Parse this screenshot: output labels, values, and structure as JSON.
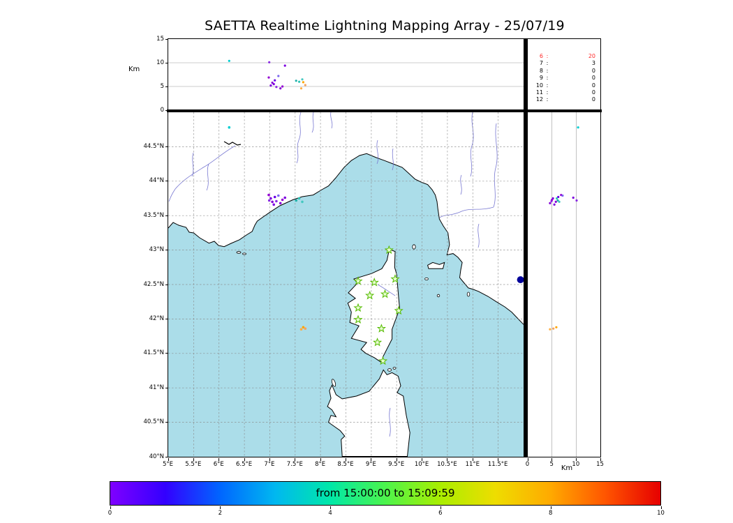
{
  "title": "SAETTA Realtime Lightning Mapping Array - 25/07/19",
  "map_colors": {
    "sea": "#abdde9",
    "land": "#ffffff",
    "coast": "#000000",
    "river": "#7979d2"
  },
  "counts_panel": {
    "highlight_color": "#ff2a2a",
    "rows": [
      {
        "label": "6",
        "value": "20"
      },
      {
        "label": "7",
        "value": "3"
      },
      {
        "label": "8",
        "value": "0"
      },
      {
        "label": "9",
        "value": "0"
      },
      {
        "label": "10",
        "value": "0"
      },
      {
        "label": "11",
        "value": "0"
      },
      {
        "label": "12",
        "value": "0"
      }
    ]
  },
  "colorbar": {
    "label": "from 15:00:00 to 15:09:59",
    "range": [
      0,
      10
    ],
    "tick_values": [
      0,
      2,
      4,
      6,
      8,
      10
    ],
    "gradient": [
      "#7f00ff",
      "#3300ff",
      "#0066ff",
      "#00b8f0",
      "#00e8a8",
      "#4cf44c",
      "#aaee00",
      "#eedd00",
      "#ffaa00",
      "#ff5500",
      "#e60000"
    ]
  },
  "chart_data": {
    "type": "scatter",
    "title": "SAETTA Realtime Lightning Mapping Array - 25/07/19",
    "time_window": "from 15:00:00 to 15:09:59",
    "lon_range": [
      5,
      12
    ],
    "lat_range": [
      40,
      45
    ],
    "alt_range_km": [
      0,
      15
    ],
    "alt_ticks": [
      0,
      5,
      10,
      15
    ],
    "alt_grid": [
      5,
      10
    ],
    "alt_axis_label": "Km",
    "lon_ticks": [
      "5°E",
      "5.5°E",
      "6°E",
      "6.5°E",
      "7°E",
      "7.5°E",
      "8°E",
      "8.5°E",
      "9°E",
      "9.5°E",
      "10°E",
      "10.5°E",
      "11°E",
      "11.5°E"
    ],
    "lat_ticks": [
      "40°N",
      "40.5°N",
      "41°N",
      "41.5°N",
      "42°N",
      "42.5°N",
      "43°N",
      "43.5°N",
      "44°N",
      "44.5°N"
    ],
    "station_color": "#55bb00",
    "stations_lonlat": [
      [
        9.35,
        43.0
      ],
      [
        8.74,
        42.55
      ],
      [
        9.06,
        42.53
      ],
      [
        9.47,
        42.58
      ],
      [
        8.97,
        42.34
      ],
      [
        9.27,
        42.36
      ],
      [
        8.74,
        42.16
      ],
      [
        9.54,
        42.12
      ],
      [
        8.74,
        41.99
      ],
      [
        9.2,
        41.86
      ],
      [
        9.12,
        41.66
      ],
      [
        9.23,
        41.39
      ]
    ],
    "sources": [
      {
        "lon": 7.02,
        "lat": 43.75,
        "alt_km": 5.2,
        "color": "#7a00dc"
      },
      {
        "lon": 7.05,
        "lat": 43.7,
        "alt_km": 5.8,
        "color": "#8400d8"
      },
      {
        "lon": 7.1,
        "lat": 43.77,
        "alt_km": 6.3,
        "color": "#6a00e8"
      },
      {
        "lon": 7.13,
        "lat": 43.71,
        "alt_km": 4.9,
        "color": "#8a2be2"
      },
      {
        "lon": 7.08,
        "lat": 43.66,
        "alt_km": 5.5,
        "color": "#7d00e0"
      },
      {
        "lon": 6.98,
        "lat": 43.8,
        "alt_km": 6.9,
        "color": "#9400d3"
      },
      {
        "lon": 7.17,
        "lat": 43.79,
        "alt_km": 7.2,
        "color": "#7b68ee"
      },
      {
        "lon": 7.21,
        "lat": 43.68,
        "alt_km": 4.6,
        "color": "#8400d8"
      },
      {
        "lon": 7.25,
        "lat": 43.73,
        "alt_km": 5.0,
        "color": "#9400d3"
      },
      {
        "lon": 6.99,
        "lat": 43.72,
        "alt_km": 10.1,
        "color": "#8a2be2"
      },
      {
        "lon": 7.3,
        "lat": 43.76,
        "alt_km": 9.4,
        "color": "#7d00e0"
      },
      {
        "lon": 6.2,
        "lat": 44.78,
        "alt_km": 10.4,
        "color": "#00ced1"
      },
      {
        "lon": 7.52,
        "lat": 43.72,
        "alt_km": 6.2,
        "color": "#20b2aa"
      },
      {
        "lon": 7.58,
        "lat": 43.75,
        "alt_km": 6.0,
        "color": "#2ec4b6"
      },
      {
        "lon": 7.64,
        "lat": 43.7,
        "alt_km": 6.5,
        "color": "#45c8c0"
      },
      {
        "lon": 7.62,
        "lat": 41.85,
        "alt_km": 4.6,
        "color": "#ffae42"
      },
      {
        "lon": 7.66,
        "lat": 41.88,
        "alt_km": 5.9,
        "color": "#ffa500"
      },
      {
        "lon": 7.7,
        "lat": 41.86,
        "alt_km": 5.3,
        "color": "#f4a460"
      }
    ],
    "large_marker": {
      "lon": 11.94,
      "lat": 42.57,
      "color": "#000099"
    }
  }
}
